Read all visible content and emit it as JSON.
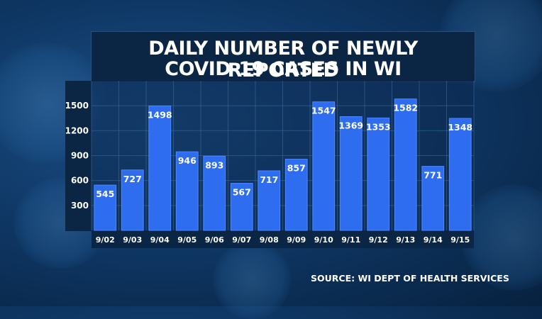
{
  "title_line1": "DAILY NUMBER OF NEWLY REPORTED",
  "title_line2": "COVID-19 CASES IN WI",
  "source": "SOURCE: WI DEPT OF HEALTH SERVICES",
  "colors": {
    "bar": "#2f6df0",
    "bar_edge": "#4d86ff",
    "panel": "#0b2545",
    "grid": "#3a6a9a",
    "text": "#ffffff"
  },
  "chart_data": {
    "type": "bar",
    "title": "DAILY NUMBER OF NEWLY REPORTED COVID-19 CASES IN WI",
    "categories": [
      "9/02",
      "9/03",
      "9/04",
      "9/05",
      "9/06",
      "9/07",
      "9/08",
      "9/09",
      "9/10",
      "9/11",
      "9/12",
      "9/13",
      "9/14",
      "9/15"
    ],
    "values": [
      545,
      727,
      1498,
      946,
      893,
      567,
      717,
      857,
      1547,
      1369,
      1353,
      1582,
      771,
      1348
    ],
    "yticks": [
      300,
      600,
      900,
      1200,
      1500
    ],
    "ylim": [
      0,
      1800
    ],
    "grid": true,
    "xlabel": "",
    "ylabel": ""
  }
}
